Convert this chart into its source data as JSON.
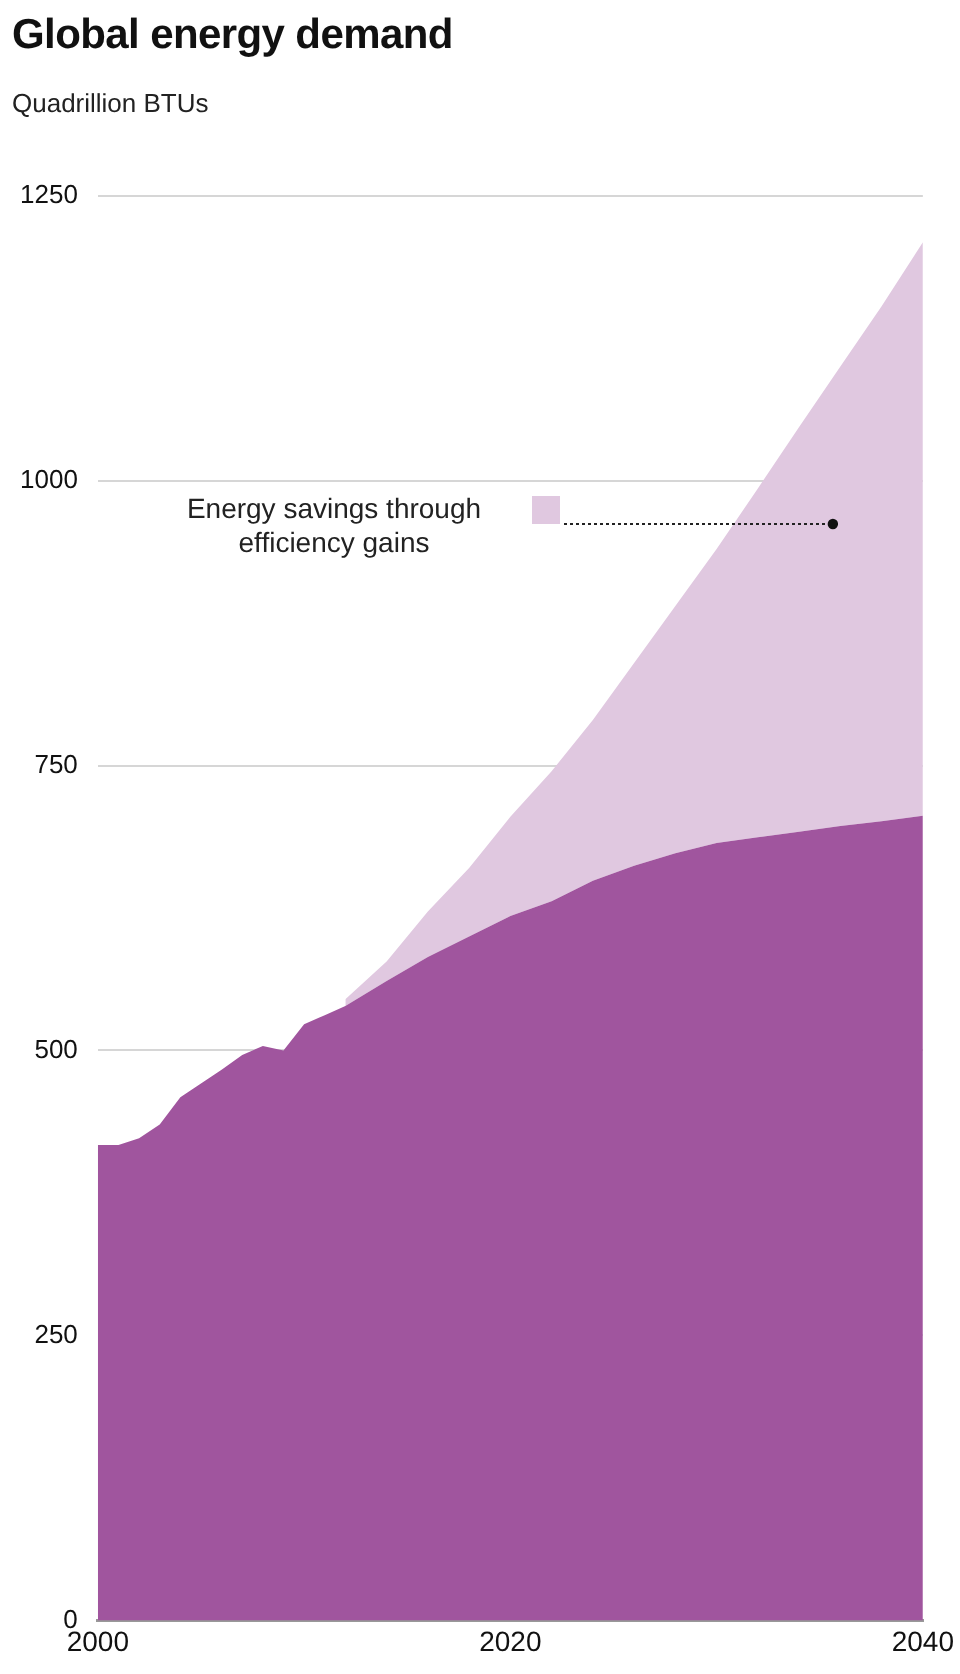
{
  "chart_data": {
    "type": "area",
    "title": "Global energy demand",
    "subtitle": "Quadrillion BTUs",
    "x": [
      2000,
      2001,
      2002,
      2003,
      2004,
      2005,
      2006,
      2007,
      2008,
      2009,
      2010,
      2011,
      2012,
      2014,
      2016,
      2018,
      2020,
      2022,
      2024,
      2026,
      2028,
      2030,
      2032,
      2034,
      2036,
      2038,
      2040
    ],
    "stacked": true,
    "series": [
      {
        "color": "#a0559e",
        "values": [
          417,
          417,
          423,
          435,
          459,
          471,
          483,
          496,
          504,
          500,
          523,
          531,
          539,
          561,
          582,
          600,
          618,
          631,
          649,
          662,
          673,
          682,
          687,
          692,
          697,
          701,
          706
        ]
      },
      {
        "name": "Energy savings through efficiency gains",
        "color": "#e0c8e0",
        "values": [
          null,
          null,
          null,
          null,
          null,
          null,
          null,
          null,
          null,
          null,
          null,
          null,
          6,
          17,
          40,
          60,
          87,
          114,
          141,
          178,
          217,
          258,
          306,
          355,
          403,
          452,
          503
        ]
      }
    ],
    "xlim": [
      2000,
      2040
    ],
    "xticks": [
      2000,
      2020,
      2040
    ],
    "ylim": [
      0,
      1250
    ],
    "yticks": [
      0,
      250,
      500,
      750,
      1000,
      1250
    ],
    "grid": "y",
    "legend": "top"
  }
}
